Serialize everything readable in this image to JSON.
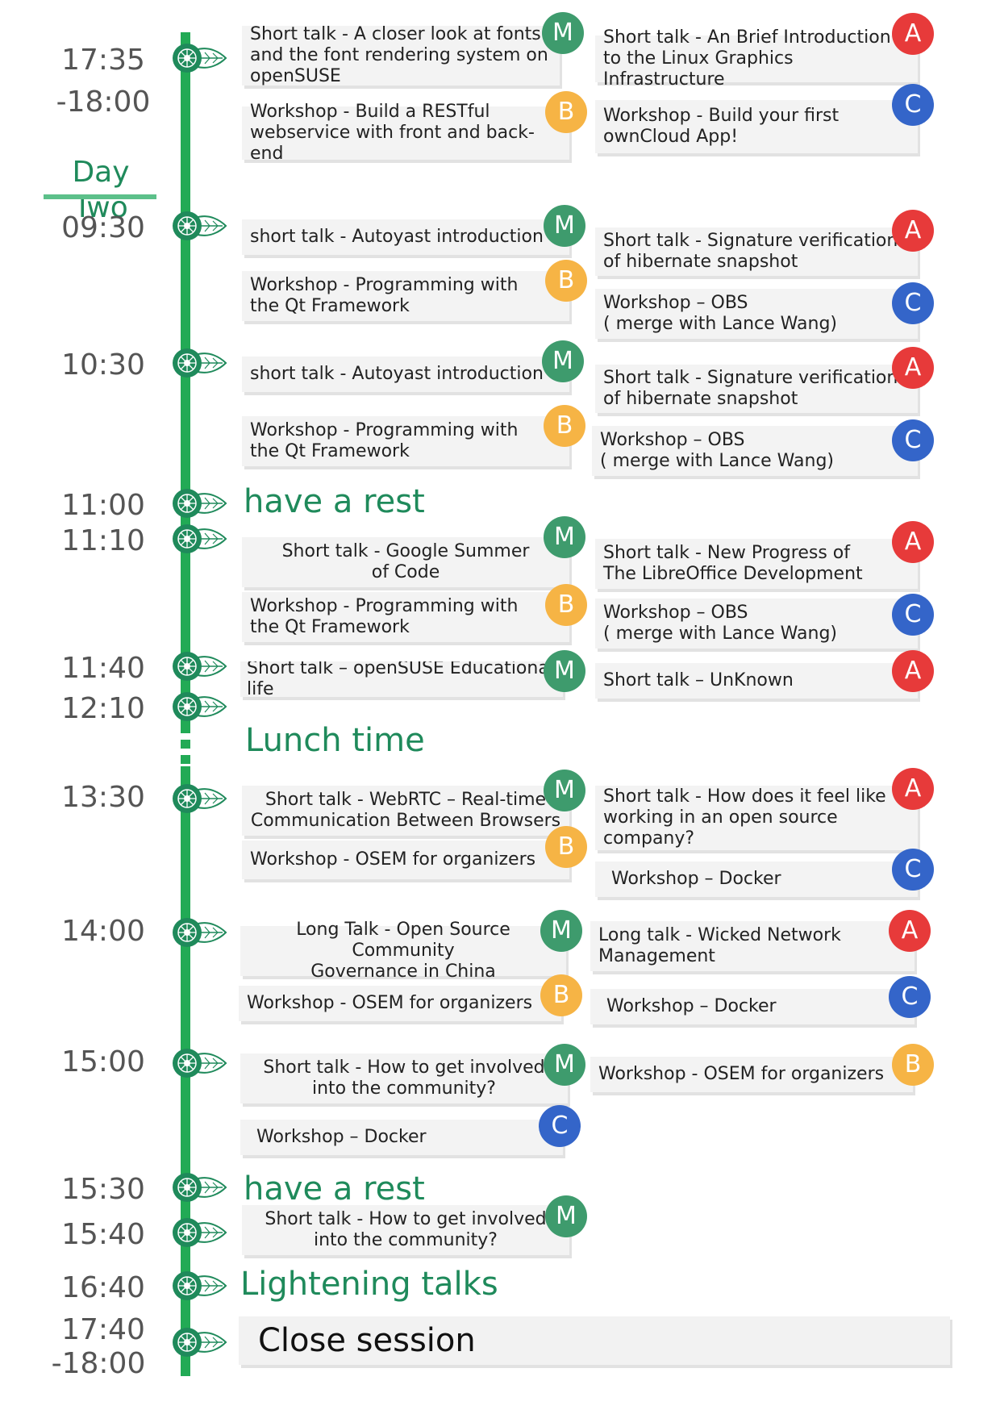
{
  "day_label": "Day Two",
  "times": {
    "t1735": "17:35",
    "t1800a": "-18:00",
    "t0930": "09:30",
    "t1030": "10:30",
    "t1100": "11:00",
    "t1110": "11:10",
    "t1140": "11:40",
    "t1210": "12:10",
    "t1330": "13:30",
    "t1400": "14:00",
    "t1500": "15:00",
    "t1530": "15:30",
    "t1540": "15:40",
    "t1640": "16:40",
    "t1740": "17:40",
    "t1800b": "-18:00"
  },
  "headings": {
    "rest1": "have a rest",
    "lunch": "Lunch time",
    "rest2": "have a rest",
    "lightening": "Lightening talks",
    "close": "Close session"
  },
  "badges": {
    "M": "M",
    "A": "A",
    "B": "B",
    "C": "C"
  },
  "sessions": {
    "s1735_m": "Short talk - A closer look at fonts\nand the font rendering system on\nopenSUSE",
    "s1735_a": "Short talk - An Brief Introduction\n to the Linux Graphics Infrastructure",
    "s1735_b": "Workshop - Build a RESTful\nwebservice with front and back-end",
    "s1735_c": "Workshop - Build your first\nownCloud App!",
    "s0930_m": "short talk - Autoyast introduction",
    "s0930_a": "Short talk - Signature verification\nof hibernate snapshot",
    "s0930_b": "Workshop - Programming with\nthe Qt Framework",
    "s0930_c": "Workshop – OBS\n( merge with Lance Wang)",
    "s1030_m": "short talk - Autoyast introduction",
    "s1030_a": "Short talk - Signature verification\nof hibernate snapshot",
    "s1030_b": "Workshop - Programming with\nthe Qt Framework",
    "s1030_c": "Workshop – OBS\n( merge with Lance Wang)",
    "s1110_m": "Short talk - Google Summer\nof Code",
    "s1110_a": "Short talk - New Progress of\nThe LibreOffice Development",
    "s1110_b": "Workshop - Programming with\nthe Qt Framework",
    "s1110_c": "Workshop – OBS\n( merge with Lance Wang)",
    "s1140_m": "Short talk – openSUSE Educational life",
    "s1140_a": "Short talk – UnKnown",
    "s1330_m": "Short talk - WebRTC – Real-time\nCommunication Between Browsers",
    "s1330_a": "Short talk - How does it feel like\nworking in an open source\ncompany?",
    "s1330_b": "Workshop - OSEM for organizers",
    "s1330_c": "Workshop – Docker",
    "s1400_m": "Long Talk - Open Source Community\nGovernance in China",
    "s1400_a": "Long talk - Wicked Network\nManagement",
    "s1400_b": "Workshop - OSEM for organizers",
    "s1400_c": "Workshop – Docker",
    "s1500_m": "Short talk - How to get involved\ninto the community?",
    "s1500_b": "Workshop - OSEM for organizers",
    "s1500_c": "Workshop – Docker",
    "s1540_m": "Short talk - How to get involved\ninto the community?"
  },
  "colors": {
    "timeline": "#22aa55",
    "heading": "#1f8a5b",
    "M": "#3e9b6d",
    "A": "#e73a3a",
    "B": "#f6b445",
    "C": "#3465c9"
  }
}
